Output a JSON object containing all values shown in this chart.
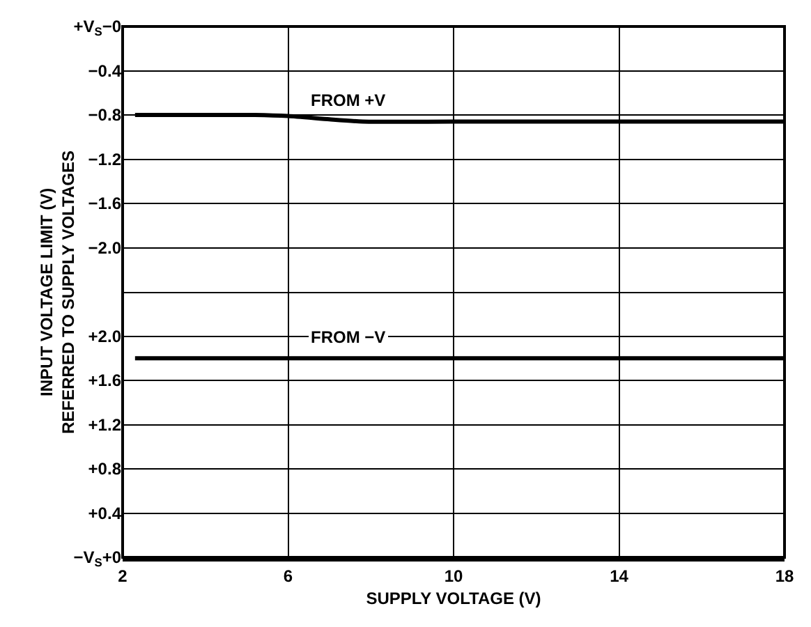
{
  "chart_data": [
    {
      "type": "line",
      "ylabel": "INPUT VOLTAGE LIMIT (V)\nREFERRED TO SUPPLY VOLTAGES",
      "xlim": [
        2,
        18
      ],
      "xticks": [
        2,
        6,
        10,
        14,
        18
      ],
      "tick_labels": "y",
      "ylim": [
        -2.4,
        0
      ],
      "yticks": [
        {
          "value": -2.0,
          "label": "−2.0"
        },
        {
          "value": -1.6,
          "label": "−1.6"
        },
        {
          "value": -1.2,
          "label": "−1.2"
        },
        {
          "value": -0.8,
          "label": "−0.8"
        },
        {
          "value": -0.4,
          "label": "−0.4"
        },
        {
          "value": 0,
          "label": "+V$_{S}$−0"
        }
      ],
      "series": [
        {
          "name": "FROM +V",
          "color": "#000000",
          "x": [
            2.3,
            4,
            5.2,
            6,
            7,
            7.8,
            10,
            14,
            18
          ],
          "values": [
            -0.8,
            -0.8,
            -0.8,
            -0.81,
            -0.84,
            -0.86,
            -0.86,
            -0.86,
            -0.86
          ]
        }
      ],
      "grid": true,
      "legend": false,
      "marker": "none",
      "line_style": "solid"
    },
    {
      "type": "line",
      "xlabel": "SUPPLY VOLTAGE (V)",
      "xlim": [
        2,
        18
      ],
      "xticks": [
        2,
        6,
        10,
        14,
        18
      ],
      "ylim": [
        0,
        2.4
      ],
      "yticks": [
        {
          "value": 0,
          "label": "−V$_{S}$+0"
        },
        {
          "value": 0.4,
          "label": "+0.4"
        },
        {
          "value": 0.8,
          "label": "+0.8"
        },
        {
          "value": 1.2,
          "label": "+1.2"
        },
        {
          "value": 1.6,
          "label": "+1.6"
        },
        {
          "value": 2.0,
          "label": "+2.0"
        }
      ],
      "series": [
        {
          "name": "FROM −V",
          "color": "#000000",
          "x": [
            2.3,
            10,
            18
          ],
          "values": [
            1.8,
            1.8,
            1.8
          ]
        }
      ],
      "grid": true,
      "legend": false,
      "marker": "none",
      "line_style": "solid"
    }
  ]
}
